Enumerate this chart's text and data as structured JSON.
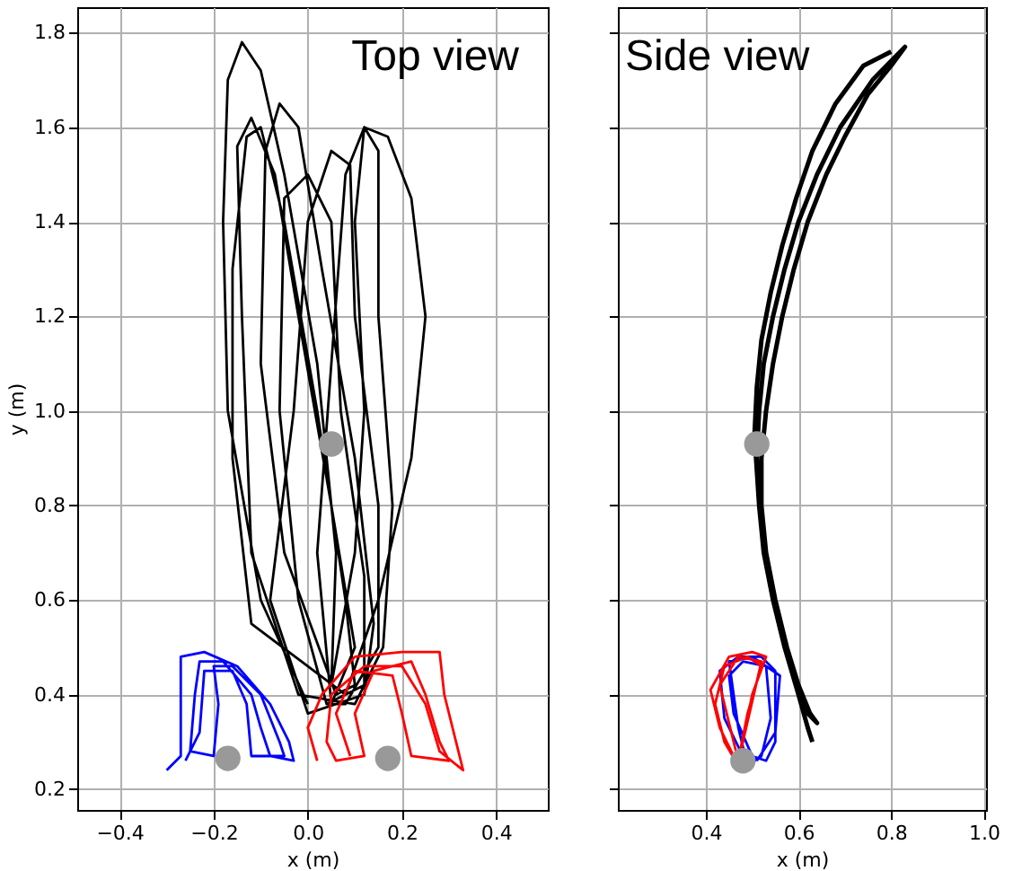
{
  "chart_data": [
    {
      "type": "line",
      "xlabel": "x (m)",
      "ylabel": "y (m)",
      "annotations": [
        "Top view"
      ],
      "grid": true,
      "xlim": [
        -0.49,
        0.51
      ],
      "xticks": [
        -0.4,
        -0.2,
        {
          "value": 0,
          "label": "0.0"
        },
        0.2,
        0.4
      ],
      "ylim": [
        0.156,
        1.854
      ],
      "yticks": [
        0.2,
        0.4,
        0.6,
        0.8,
        {
          "value": 1,
          "label": "1.0"
        },
        1.2,
        1.4,
        1.6,
        1.8
      ],
      "series": [
        {
          "color": "#000000",
          "x": [
            0.0,
            -0.1,
            -0.17,
            -0.18,
            -0.17,
            -0.14,
            -0.1,
            -0.05,
            0.02,
            0.06,
            0.05,
            0.1,
            0.12,
            0.1,
            0.12,
            0.17,
            0.22,
            0.25,
            0.22,
            0.15,
            0.08,
            -0.12,
            -0.16,
            -0.16,
            -0.13,
            -0.1,
            -0.05,
            0.02,
            0.08,
            0.1,
            0.06,
            -0.05,
            -0.1,
            -0.09,
            -0.06,
            -0.02,
            0.03,
            0.1,
            0.14,
            0.12,
            0.0,
            -0.08,
            -0.03,
            0.0,
            0.05,
            0.09,
            0.1,
            0.15,
            0.15,
            0.08,
            0.05,
            0.02,
            0.05,
            0.08,
            0.12,
            0.15,
            0.15,
            0.18,
            0.16,
            0.1,
            -0.02,
            -0.12,
            -0.14,
            -0.15,
            -0.12,
            -0.07,
            -0.02,
            0.05,
            0.1,
            0.05,
            0.04,
            -0.02,
            -0.06,
            -0.05,
            0.0,
            0.05,
            0.07,
            0.12,
            0.12,
            0.04
          ],
          "values": [
            0.38,
            0.6,
            1.0,
            1.4,
            1.7,
            1.78,
            1.72,
            1.5,
            1.1,
            0.7,
            0.42,
            0.7,
            1.0,
            1.4,
            1.6,
            1.58,
            1.45,
            1.2,
            0.9,
            0.6,
            0.4,
            0.55,
            0.9,
            1.3,
            1.58,
            1.6,
            1.4,
            1.0,
            0.6,
            0.42,
            0.4,
            0.7,
            1.1,
            1.55,
            1.65,
            1.6,
            1.3,
            0.9,
            0.55,
            0.4,
            0.36,
            0.6,
            1.0,
            1.4,
            1.55,
            1.52,
            1.2,
            0.8,
            0.5,
            0.38,
            0.38,
            0.7,
            1.1,
            1.5,
            1.6,
            1.55,
            1.2,
            0.8,
            0.5,
            0.38,
            0.4,
            0.7,
            1.2,
            1.56,
            1.62,
            1.5,
            1.2,
            0.8,
            0.5,
            0.38,
            0.38,
            0.6,
            1.0,
            1.45,
            1.5,
            1.4,
            1.0,
            0.65,
            0.42,
            0.38
          ]
        },
        {
          "color": "#0000ff",
          "x": [
            -0.3,
            -0.27,
            -0.27,
            -0.22,
            -0.15,
            -0.08,
            -0.04,
            -0.03,
            -0.08,
            -0.1,
            -0.12,
            -0.18,
            -0.23,
            -0.24,
            -0.25,
            -0.2,
            -0.19,
            -0.2,
            -0.16,
            -0.1,
            -0.06,
            -0.05,
            -0.12,
            -0.13,
            -0.16,
            -0.22,
            -0.23,
            -0.26
          ],
          "values": [
            0.24,
            0.27,
            0.48,
            0.49,
            0.46,
            0.38,
            0.3,
            0.26,
            0.27,
            0.33,
            0.4,
            0.47,
            0.47,
            0.4,
            0.28,
            0.27,
            0.38,
            0.46,
            0.46,
            0.4,
            0.3,
            0.27,
            0.27,
            0.38,
            0.45,
            0.45,
            0.32,
            0.26
          ]
        },
        {
          "color": "#ff0000",
          "x": [
            0.02,
            0.0,
            0.03,
            0.1,
            0.2,
            0.28,
            0.29,
            0.33,
            0.28,
            0.25,
            0.2,
            0.12,
            0.05,
            0.04,
            0.06,
            0.12,
            0.1,
            0.14,
            0.22,
            0.25,
            0.28,
            0.3,
            0.22,
            0.2,
            0.18,
            0.1,
            0.06,
            0.09
          ],
          "values": [
            0.26,
            0.33,
            0.4,
            0.48,
            0.49,
            0.49,
            0.4,
            0.24,
            0.28,
            0.38,
            0.46,
            0.46,
            0.4,
            0.3,
            0.26,
            0.27,
            0.36,
            0.45,
            0.47,
            0.4,
            0.3,
            0.26,
            0.27,
            0.36,
            0.44,
            0.45,
            0.36,
            0.27
          ]
        },
        {
          "type": "scatter",
          "color": "#999999",
          "marker": "circle",
          "x": [
            -0.17,
            0.05,
            0.17
          ],
          "values": [
            0.265,
            0.93,
            0.265
          ]
        }
      ]
    },
    {
      "type": "line",
      "xlabel": "x (m)",
      "annotations": [
        "Side view"
      ],
      "grid": true,
      "tick_labels": "x",
      "xlim": [
        0.21,
        1.005
      ],
      "xticks": [
        0.4,
        0.6,
        0.8,
        {
          "value": 1,
          "label": "1.0"
        }
      ],
      "ylim": [
        0.156,
        1.854
      ],
      "yticks": [
        0.2,
        0.4,
        0.6,
        0.8,
        1,
        1.2,
        1.4,
        1.6,
        1.8
      ],
      "series": [
        {
          "color": "#000000",
          "x": [
            0.63,
            0.62,
            0.6,
            0.57,
            0.545,
            0.525,
            0.515,
            0.51,
            0.515,
            0.525,
            0.545,
            0.57,
            0.6,
            0.64,
            0.69,
            0.76,
            0.83,
            0.8,
            0.75,
            0.7,
            0.66,
            0.62,
            0.59,
            0.565,
            0.545,
            0.53,
            0.52,
            0.52,
            0.53,
            0.55,
            0.575,
            0.6,
            0.625,
            0.64,
            0.62,
            0.6,
            0.575,
            0.55,
            0.53,
            0.515,
            0.505,
            0.51,
            0.52,
            0.54,
            0.565,
            0.595,
            0.63,
            0.68,
            0.74,
            0.8
          ],
          "values": [
            0.3,
            0.33,
            0.4,
            0.5,
            0.6,
            0.7,
            0.8,
            0.9,
            1.0,
            1.1,
            1.2,
            1.3,
            1.4,
            1.5,
            1.6,
            1.7,
            1.77,
            1.73,
            1.67,
            1.58,
            1.5,
            1.4,
            1.3,
            1.2,
            1.1,
            1.0,
            0.9,
            0.8,
            0.7,
            0.6,
            0.5,
            0.42,
            0.36,
            0.34,
            0.36,
            0.42,
            0.5,
            0.6,
            0.7,
            0.8,
            0.95,
            1.05,
            1.15,
            1.25,
            1.35,
            1.45,
            1.55,
            1.65,
            1.73,
            1.76
          ]
        },
        {
          "color": "#0000ff",
          "x": [
            0.49,
            0.44,
            0.43,
            0.47,
            0.52,
            0.55,
            0.55,
            0.53,
            0.5,
            0.46,
            0.45,
            0.48,
            0.53,
            0.54,
            0.52,
            0.49,
            0.47,
            0.45,
            0.5,
            0.56,
            0.55,
            0.51
          ],
          "values": [
            0.25,
            0.35,
            0.45,
            0.48,
            0.48,
            0.45,
            0.3,
            0.26,
            0.27,
            0.36,
            0.44,
            0.47,
            0.46,
            0.35,
            0.27,
            0.25,
            0.33,
            0.47,
            0.48,
            0.44,
            0.32,
            0.26
          ]
        },
        {
          "color": "#ff0000",
          "x": [
            0.47,
            0.43,
            0.41,
            0.45,
            0.5,
            0.53,
            0.5,
            0.48,
            0.47,
            0.44,
            0.42,
            0.44,
            0.49,
            0.52,
            0.49,
            0.47,
            0.46,
            0.43,
            0.47,
            0.52,
            0.48
          ],
          "values": [
            0.25,
            0.33,
            0.41,
            0.48,
            0.49,
            0.48,
            0.4,
            0.3,
            0.25,
            0.3,
            0.38,
            0.46,
            0.48,
            0.46,
            0.36,
            0.26,
            0.3,
            0.42,
            0.48,
            0.47,
            0.3
          ]
        },
        {
          "type": "scatter",
          "color": "#999999",
          "marker": "circle",
          "x": [
            0.51,
            0.48
          ],
          "values": [
            0.93,
            0.26
          ]
        }
      ]
    }
  ]
}
